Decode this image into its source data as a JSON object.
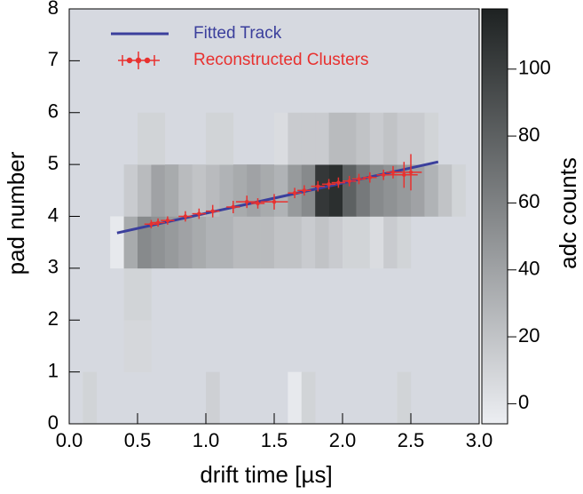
{
  "chart_data": {
    "type": "heatmap",
    "xlabel": "drift time [µs]",
    "ylabel": "pad number",
    "zlabel": "adc counts",
    "xlim": [
      0,
      3
    ],
    "ylim": [
      0,
      8
    ],
    "zlim": [
      -6,
      118
    ],
    "xticks": [
      {
        "value": 0,
        "label": "0.0"
      },
      {
        "value": 0.5,
        "label": "0.5"
      },
      {
        "value": 1,
        "label": "1.0"
      },
      {
        "value": 1.5,
        "label": "1.5"
      },
      {
        "value": 2,
        "label": "2.0"
      },
      {
        "value": 2.5,
        "label": "2.5"
      },
      {
        "value": 3,
        "label": "3.0"
      }
    ],
    "yticks": [
      0,
      1,
      2,
      3,
      4,
      5,
      6,
      7,
      8
    ],
    "zticks": [
      0,
      20,
      40,
      60,
      80,
      100
    ],
    "z": [
      [
        null,
        10,
        null,
        null,
        null,
        null,
        null,
        null,
        null,
        null,
        12,
        null,
        null,
        null,
        null,
        null,
        -3,
        10,
        null,
        null,
        null,
        null,
        null,
        null,
        10,
        null,
        null,
        null,
        null,
        null
      ],
      [
        null,
        null,
        null,
        null,
        8,
        8,
        null,
        null,
        null,
        null,
        null,
        null,
        null,
        null,
        null,
        null,
        null,
        null,
        null,
        null,
        null,
        null,
        null,
        null,
        null,
        null,
        null,
        null,
        null,
        null
      ],
      [
        null,
        null,
        null,
        null,
        10,
        10,
        null,
        null,
        null,
        null,
        null,
        null,
        null,
        null,
        null,
        null,
        null,
        null,
        null,
        null,
        null,
        null,
        null,
        null,
        null,
        null,
        null,
        null,
        null,
        null
      ],
      [
        null,
        null,
        null,
        -3,
        35,
        55,
        50,
        45,
        40,
        35,
        30,
        30,
        25,
        25,
        25,
        20,
        20,
        15,
        20,
        15,
        10,
        10,
        5,
        15,
        10,
        null,
        null,
        null,
        null,
        null
      ],
      [
        null,
        null,
        null,
        null,
        15,
        25,
        40,
        35,
        25,
        20,
        25,
        30,
        35,
        40,
        35,
        30,
        45,
        55,
        105,
        110,
        80,
        65,
        55,
        50,
        45,
        40,
        30,
        20,
        10,
        null
      ],
      [
        null,
        null,
        null,
        null,
        null,
        10,
        10,
        null,
        null,
        null,
        10,
        10,
        null,
        null,
        null,
        5,
        15,
        15,
        15,
        25,
        25,
        20,
        15,
        20,
        15,
        15,
        10,
        null,
        null,
        null
      ],
      [
        null,
        null,
        null,
        null,
        null,
        null,
        null,
        null,
        null,
        null,
        null,
        null,
        null,
        null,
        null,
        null,
        null,
        null,
        null,
        null,
        null,
        null,
        null,
        null,
        null,
        null,
        null,
        null,
        null,
        null
      ],
      [
        null,
        null,
        null,
        null,
        null,
        null,
        null,
        null,
        null,
        null,
        null,
        null,
        null,
        null,
        null,
        null,
        null,
        null,
        null,
        null,
        null,
        null,
        null,
        null,
        null,
        null,
        null,
        null,
        null,
        null
      ]
    ],
    "fit": {
      "name": "Fitted Track",
      "color": "#3b3f9c",
      "x": [
        0.35,
        2.7
      ],
      "y": [
        3.68,
        5.05
      ]
    },
    "clusters": {
      "name": "Reconstructed Clusters",
      "color": "#e8312f",
      "x": [
        0.6,
        0.65,
        0.72,
        0.85,
        0.95,
        1.05,
        1.2,
        1.3,
        1.38,
        1.5,
        1.65,
        1.72,
        1.82,
        1.9,
        1.97,
        2.05,
        2.12,
        2.2,
        2.3,
        2.37,
        2.45,
        2.5
      ],
      "y": [
        3.85,
        3.88,
        3.92,
        4.0,
        4.05,
        4.1,
        4.18,
        4.28,
        4.25,
        4.28,
        4.45,
        4.5,
        4.58,
        4.62,
        4.65,
        4.68,
        4.72,
        4.75,
        4.8,
        4.85,
        4.8,
        4.85
      ],
      "xerr": [
        0.05,
        0.05,
        0.05,
        0.05,
        0.05,
        0.05,
        0.05,
        0.08,
        0.05,
        0.1,
        0.05,
        0.05,
        0.05,
        0.05,
        0.05,
        0.05,
        0.05,
        0.05,
        0.05,
        0.05,
        0.1,
        0.08
      ],
      "yerr": [
        0.08,
        0.08,
        0.08,
        0.1,
        0.1,
        0.12,
        0.12,
        0.12,
        0.1,
        0.15,
        0.1,
        0.1,
        0.1,
        0.1,
        0.1,
        0.1,
        0.1,
        0.1,
        0.1,
        0.12,
        0.25,
        0.35
      ]
    }
  }
}
